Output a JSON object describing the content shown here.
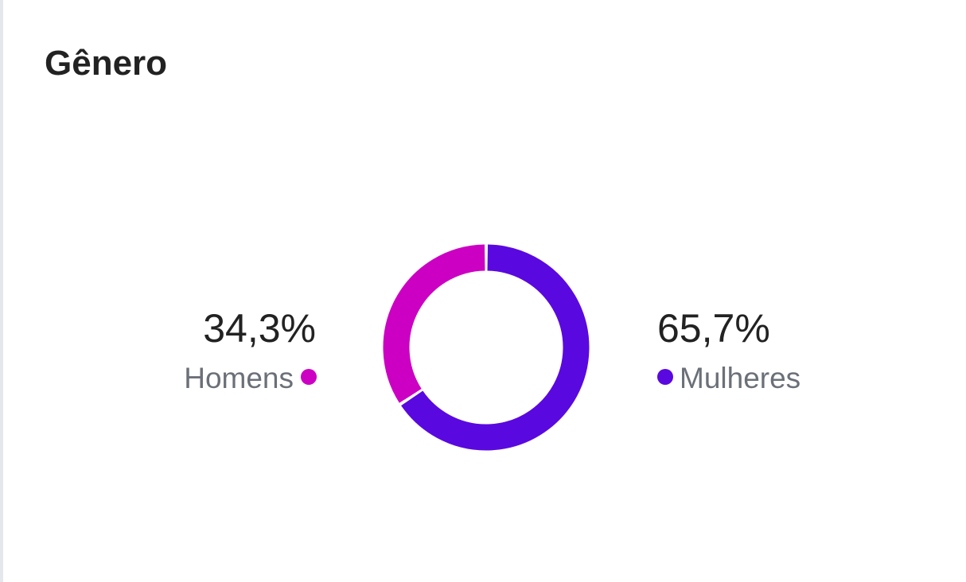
{
  "chart_data": {
    "type": "pie",
    "title": "Gênero",
    "categories": [
      "Homens",
      "Mulheres"
    ],
    "values": [
      34.3,
      65.7
    ],
    "value_labels": [
      "34,3%",
      "65,7%"
    ],
    "colors": [
      "#cc00c2",
      "#5a08e0"
    ]
  }
}
